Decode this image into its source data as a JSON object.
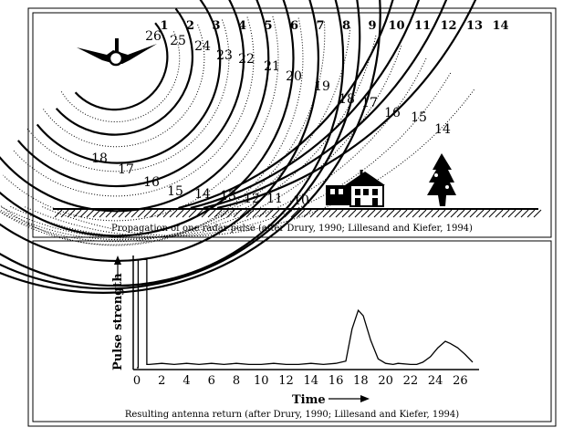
{
  "top_panel": {
    "caption": "Propagation of one radar pulse (after Drury, 1990; Lillesand and Kiefer, 1994)",
    "wavefront_numbers": [
      "1",
      "2",
      "3",
      "4",
      "5",
      "6",
      "7",
      "8",
      "9",
      "10",
      "11",
      "12",
      "13",
      "14"
    ],
    "return_numbers": [
      "26",
      "25",
      "24",
      "23",
      "22",
      "21",
      "20",
      "19",
      "18",
      "17",
      "16",
      "15",
      "14"
    ],
    "ground_numbers": [
      "18",
      "17",
      "16",
      "15",
      "14",
      "13",
      "12",
      "11",
      "10"
    ]
  },
  "bottom_panel": {
    "caption": "Resulting antenna return (after Drury, 1990;  Lillesand and Kiefer, 1994)",
    "y_axis_label": "Pulse strength",
    "x_axis_label": "Time",
    "x_ticks": [
      "0",
      "2",
      "4",
      "6",
      "8",
      "10",
      "12",
      "14",
      "16",
      "18",
      "20",
      "22",
      "24",
      "26"
    ]
  },
  "chart_data": {
    "type": "line",
    "xlabel": "Time",
    "ylabel": "Pulse strength",
    "xlim": [
      0,
      27
    ],
    "ylim": [
      0,
      1
    ],
    "x": [
      0,
      0.1,
      0.1,
      0.8,
      0.8,
      1,
      2,
      3,
      4,
      5,
      6,
      7,
      8,
      9,
      10,
      11,
      12,
      13,
      14,
      15,
      16,
      16.8,
      17.3,
      17.8,
      18.2,
      18.8,
      19.4,
      20,
      20.6,
      21,
      22,
      22.5,
      23,
      23.6,
      24.2,
      24.8,
      25.2,
      25.8,
      26.4,
      27
    ],
    "y": [
      0,
      0,
      0.98,
      0.98,
      0.03,
      0.03,
      0.04,
      0.03,
      0.04,
      0.03,
      0.04,
      0.03,
      0.04,
      0.03,
      0.03,
      0.04,
      0.03,
      0.03,
      0.04,
      0.03,
      0.04,
      0.06,
      0.35,
      0.52,
      0.47,
      0.25,
      0.08,
      0.04,
      0.03,
      0.04,
      0.03,
      0.03,
      0.05,
      0.1,
      0.18,
      0.24,
      0.22,
      0.18,
      0.12,
      0.05
    ]
  }
}
